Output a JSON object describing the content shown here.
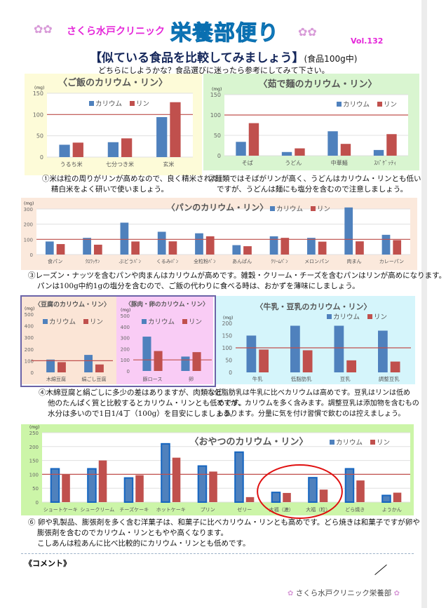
{
  "header": {
    "clinic": "さくら水戸クリニック",
    "newsletter": "栄養部便り",
    "vol": "Vol.132",
    "title": "【似ている食品を比較してみましょう】",
    "title_note": "(食品100g中)",
    "subtitle": "どちらにしようかな？食品選びに迷ったら参考にしてみて下さい。"
  },
  "colors": {
    "potassium": "#4f81bd",
    "phosphorus": "#c0504d",
    "reference_line": "#c0504d"
  },
  "chart_data": [
    {
      "type": "bar",
      "title": "〈ご飯のカリウム・リン〉",
      "ylabel": "(mg)",
      "ylim": [
        0,
        150
      ],
      "yticks": [
        0,
        50,
        100,
        150
      ],
      "reference_line": 100,
      "grid": true,
      "legend": "top-center",
      "categories": [
        "うるち米",
        "七分つき米",
        "玄米"
      ],
      "series": [
        {
          "name": "カリウム",
          "values": [
            29,
            35,
            94
          ]
        },
        {
          "name": "リン",
          "values": [
            34,
            44,
            129
          ]
        }
      ]
    },
    {
      "type": "bar",
      "title": "〈茹で麺のカリウム・リン〉",
      "ylabel": "(mg)",
      "ylim": [
        0,
        150
      ],
      "yticks": [
        0,
        50,
        100,
        150
      ],
      "reference_line": 100,
      "grid": true,
      "legend": "top-right",
      "categories": [
        "そば",
        "うどん",
        "中華麺",
        "ｽﾊﾟｹﾞｯﾃｨ"
      ],
      "series": [
        {
          "name": "カリウム",
          "values": [
            34,
            9,
            60,
            14
          ]
        },
        {
          "name": "リン",
          "values": [
            80,
            18,
            29,
            53
          ]
        }
      ]
    },
    {
      "type": "bar",
      "title": "〈パンのカリウム・リン〉",
      "ylabel": "(mg)",
      "ylim": [
        0,
        300
      ],
      "yticks": [
        0,
        100,
        200,
        300
      ],
      "reference_line": 100,
      "grid": true,
      "legend": "top-right",
      "categories": [
        "食パン",
        "ｸﾛﾜｯｻﾝ",
        "ぶどうﾊﾟﾝ",
        "くるみﾊﾟﾝ",
        "全粒粉ﾊﾟﾝ",
        "あんぱん",
        "ｸﾘｰﾑﾊﾟﾝ",
        "メロンパン",
        "肉まん",
        "カレーパン"
      ],
      "series": [
        {
          "name": "カリウム",
          "values": [
            86,
            110,
            210,
            150,
            140,
            62,
            120,
            110,
            310,
            130
          ]
        },
        {
          "name": "リン",
          "values": [
            69,
            65,
            86,
            87,
            120,
            55,
            110,
            85,
            87,
            95
          ]
        }
      ]
    },
    {
      "type": "bar",
      "title": "〈豆腐のカリウム・リン〉",
      "ylabel": "(mg)",
      "ylim": [
        0,
        500
      ],
      "yticks": [
        0,
        100,
        200,
        300,
        400,
        500
      ],
      "reference_line": 100,
      "grid": false,
      "legend": "top-left",
      "categories": [
        "木綿豆腐",
        "絹ごし豆腐"
      ],
      "series": [
        {
          "name": "カリウム",
          "values": [
            110,
            150
          ]
        },
        {
          "name": "リン",
          "values": [
            88,
            68
          ]
        }
      ]
    },
    {
      "type": "bar",
      "title": "〈豚肉・卵のカリウム・リン〉",
      "ylabel": "(mg)",
      "ylim": [
        0,
        500
      ],
      "yticks": [
        0,
        100,
        200,
        300,
        400,
        500
      ],
      "reference_line": 100,
      "grid": false,
      "legend": "top-left",
      "categories": [
        "豚ロース",
        "卵"
      ],
      "series": [
        {
          "name": "カリウム",
          "values": [
            310,
            130
          ]
        },
        {
          "name": "リン",
          "values": [
            180,
            170
          ]
        }
      ]
    },
    {
      "type": "bar",
      "title": "〈牛乳・豆乳のカリウム・リン〉",
      "ylabel": "(mg)",
      "ylim": [
        0,
        200
      ],
      "yticks": [
        0,
        50,
        100,
        150,
        200
      ],
      "reference_line": 100,
      "grid": false,
      "legend": "top-right",
      "categories": [
        "牛乳",
        "低脂肪乳",
        "豆乳",
        "調整豆乳"
      ],
      "series": [
        {
          "name": "カリウム",
          "values": [
            150,
            190,
            190,
            170
          ]
        },
        {
          "name": "リン",
          "values": [
            93,
            90,
            49,
            44
          ]
        }
      ]
    },
    {
      "type": "bar",
      "title": "〈おやつのカリウム・リン〉",
      "ylabel": "(mg)",
      "ylim": [
        0,
        250
      ],
      "yticks": [
        0,
        50,
        100,
        150,
        200,
        250
      ],
      "reference_line": 100,
      "grid": true,
      "legend": "top-right",
      "categories": [
        "ショートケーキ",
        "シュークリーム",
        "チーズケーキ",
        "ホットケーキ",
        "プリン",
        "ゼリー",
        "大福（漉）",
        "大福（粒）",
        "どら焼き",
        "ようかん"
      ],
      "series": [
        {
          "name": "カリウム",
          "values": [
            120,
            120,
            87,
            210,
            130,
            180,
            35,
            88,
            120,
            24
          ]
        },
        {
          "name": "リン",
          "values": [
            100,
            150,
            97,
            160,
            110,
            18,
            33,
            45,
            78,
            34
          ]
        }
      ],
      "highlight": [
        "大福（漉）",
        "大福（粒）"
      ]
    }
  ],
  "captions": [
    [
      "①米は粒の周りがリンが高めなので、良く精米された",
      "精白米をよく研いで使いましょう。"
    ],
    [
      "②麺類ではそばがリンが高く、うどんはカリウム・リンとも低い",
      "ですが、うどんは麺にも塩分を含むので注意しましょう。"
    ],
    [
      "③レーズン・ナッツを含むパンや肉まんはカリウムが高めです。雑穀・クリーム・チーズを含むパンはリンが高めになります。",
      "パンは100g中約1gの塩分を含むので、ご飯の代わりに食べる時は、おかずを薄味にしましょう。"
    ],
    [
      "④木綿豆腐と絹ごしに多少の差はありますが、肉類など",
      "他のたんぱく質と比較するとカリウム・リンとも低めです。",
      "水分は多いので1日1/4丁（100g）を目安にしましょう。"
    ],
    [
      "⑤低脂肪乳は牛乳に比べカリウムは高めです。豆乳はリンは低め",
      "ですが、カリウムを多く含みます。調整豆乳は添加物を含むもの",
      "もあります。分量に気を付け習慣で飲むのは控えましょう。"
    ],
    [
      "⑥ 卵や乳製品、膨張剤を多く含む洋菓子は、和菓子に比べカリウム・リンとも高めです。どら焼きは和菓子ですが卵や",
      "膨張剤を含むのでカリウム・リンともやや高くなります。",
      "こしあんは粒あんに比べ比較的にカリウム・リンとも低めです。"
    ]
  ],
  "comment_label": "《コメント》",
  "footer": "さくら水戸クリニック栄養部"
}
